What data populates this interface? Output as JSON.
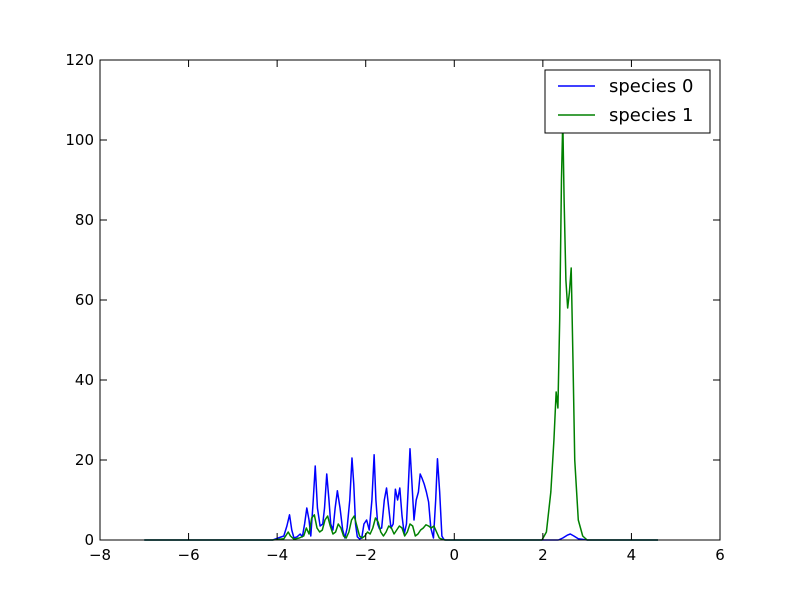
{
  "chart_data": {
    "type": "line",
    "title": "",
    "xlabel": "",
    "ylabel": "",
    "xlim": [
      -8,
      6
    ],
    "ylim": [
      0,
      120
    ],
    "xticks": [
      -8,
      -6,
      -4,
      -2,
      0,
      2,
      4,
      6
    ],
    "yticks": [
      0,
      20,
      40,
      60,
      80,
      100,
      120
    ],
    "xtick_labels": [
      "−8",
      "−6",
      "−4",
      "−2",
      "0",
      "2",
      "4",
      "6"
    ],
    "ytick_labels": [
      "0",
      "20",
      "40",
      "60",
      "80",
      "100",
      "120"
    ],
    "grid": false,
    "legend": "top-right",
    "series": [
      {
        "name": "species 0",
        "color": "#0000ff",
        "x": [
          -7.0,
          -4.1,
          -3.85,
          -3.78,
          -3.72,
          -3.67,
          -3.62,
          -3.55,
          -3.48,
          -3.43,
          -3.38,
          -3.33,
          -3.28,
          -3.24,
          -3.19,
          -3.14,
          -3.09,
          -3.03,
          -2.97,
          -2.93,
          -2.88,
          -2.83,
          -2.79,
          -2.74,
          -2.69,
          -2.64,
          -2.58,
          -2.52,
          -2.47,
          -2.42,
          -2.36,
          -2.31,
          -2.27,
          -2.23,
          -2.19,
          -2.14,
          -2.09,
          -2.04,
          -1.98,
          -1.92,
          -1.86,
          -1.81,
          -1.77,
          -1.73,
          -1.69,
          -1.64,
          -1.58,
          -1.53,
          -1.48,
          -1.43,
          -1.38,
          -1.33,
          -1.28,
          -1.23,
          -1.18,
          -1.13,
          -1.08,
          -1.04,
          -1.0,
          -0.96,
          -0.91,
          -0.86,
          -0.81,
          -0.77,
          -0.73,
          -0.68,
          -0.63,
          -0.58,
          -0.53,
          -0.47,
          -0.42,
          -0.38,
          -0.33,
          -0.28,
          -0.24,
          -0.2,
          -0.15,
          0.0,
          2.1,
          2.35,
          2.45,
          2.55,
          2.62,
          2.7,
          2.8,
          3.0,
          4.6
        ],
        "values": [
          0,
          0,
          1.0,
          3.5,
          6.3,
          2.5,
          0.5,
          0.8,
          1.5,
          0.8,
          4.0,
          8.0,
          5.0,
          1.0,
          9.0,
          18.5,
          8.0,
          3.5,
          4.0,
          8.0,
          16.5,
          10.0,
          4.0,
          2.5,
          8.0,
          12.3,
          8.0,
          2.5,
          0.5,
          3.0,
          10.0,
          20.5,
          14.0,
          4.0,
          0.8,
          0.3,
          0.5,
          4.0,
          5.0,
          2.5,
          10.0,
          21.3,
          10.0,
          4.0,
          2.8,
          3.0,
          10.0,
          13.0,
          8.0,
          3.0,
          4.0,
          12.7,
          10.0,
          13.0,
          6.0,
          1.5,
          4.0,
          13.0,
          22.8,
          15.0,
          5.0,
          10.0,
          12.0,
          16.5,
          15.5,
          14.0,
          12.0,
          9.5,
          3.0,
          0.5,
          10.0,
          20.3,
          12.0,
          1.0,
          0.2,
          0,
          0,
          0,
          0,
          0,
          0.5,
          1.2,
          1.5,
          1.0,
          0.3,
          0,
          0
        ]
      },
      {
        "name": "species 1",
        "color": "#008000",
        "x": [
          -7.0,
          -4.1,
          -3.85,
          -3.75,
          -3.7,
          -3.62,
          -3.5,
          -3.4,
          -3.34,
          -3.28,
          -3.22,
          -3.16,
          -3.1,
          -3.04,
          -2.98,
          -2.92,
          -2.86,
          -2.8,
          -2.74,
          -2.68,
          -2.62,
          -2.56,
          -2.5,
          -2.44,
          -2.38,
          -2.32,
          -2.26,
          -2.2,
          -2.14,
          -2.08,
          -2.02,
          -1.96,
          -1.9,
          -1.84,
          -1.78,
          -1.72,
          -1.66,
          -1.6,
          -1.54,
          -1.48,
          -1.42,
          -1.36,
          -1.3,
          -1.24,
          -1.18,
          -1.12,
          -1.06,
          -1.0,
          -0.94,
          -0.88,
          -0.82,
          -0.76,
          -0.7,
          -0.64,
          -0.58,
          -0.52,
          -0.46,
          -0.4,
          -0.34,
          -0.28,
          -0.22,
          -0.15,
          0.0,
          1.98,
          2.08,
          2.18,
          2.25,
          2.3,
          2.34,
          2.38,
          2.42,
          2.45,
          2.48,
          2.52,
          2.56,
          2.6,
          2.64,
          2.68,
          2.72,
          2.8,
          2.9,
          3.0,
          4.6
        ],
        "values": [
          0,
          0,
          0.3,
          2.0,
          1.0,
          0.2,
          0.5,
          1.0,
          3.0,
          1.5,
          5.5,
          6.3,
          3.0,
          2.0,
          2.5,
          5.0,
          6.0,
          3.5,
          1.5,
          2.0,
          4.0,
          3.0,
          1.0,
          0.5,
          2.0,
          5.0,
          6.0,
          3.5,
          1.0,
          0.5,
          1.0,
          2.0,
          1.5,
          3.0,
          5.5,
          4.5,
          2.0,
          1.0,
          2.0,
          3.5,
          3.0,
          1.5,
          2.5,
          3.5,
          3.0,
          1.0,
          2.0,
          4.0,
          3.5,
          1.0,
          1.5,
          2.5,
          3.0,
          3.8,
          3.5,
          3.0,
          3.5,
          2.0,
          0.5,
          0.2,
          0,
          0,
          0,
          0,
          2.0,
          12.0,
          25.0,
          37.0,
          33.0,
          55.0,
          90.0,
          105.0,
          85.0,
          65.0,
          58.0,
          62.0,
          68.0,
          45.0,
          20.0,
          5.0,
          1.0,
          0,
          0
        ]
      }
    ]
  }
}
